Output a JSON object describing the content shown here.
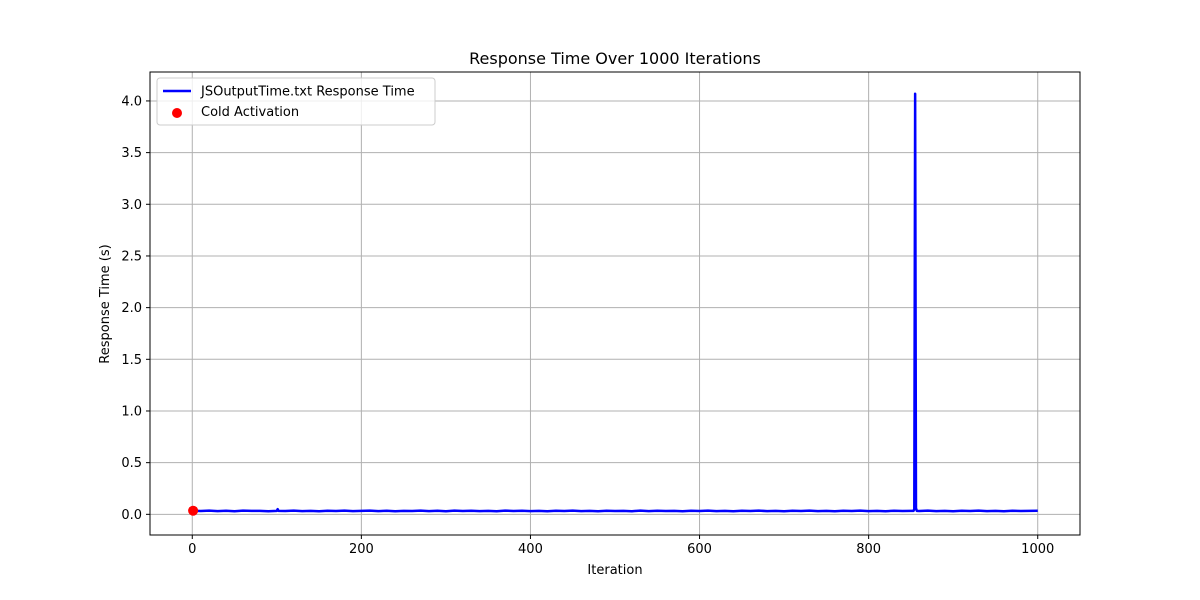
{
  "chart_data": {
    "type": "line",
    "title": "Response Time Over 1000 Iterations",
    "xlabel": "Iteration",
    "ylabel": "Response Time (s)",
    "xlim": [
      -50,
      1050
    ],
    "ylim": [
      -0.2,
      4.28
    ],
    "xticks": [
      0,
      200,
      400,
      600,
      800,
      1000
    ],
    "xtick_labels": [
      "0",
      "200",
      "400",
      "600",
      "800",
      "1000"
    ],
    "yticks": [
      0.0,
      0.5,
      1.0,
      1.5,
      2.0,
      2.5,
      3.0,
      3.5,
      4.0
    ],
    "ytick_labels": [
      "0.0",
      "0.5",
      "1.0",
      "1.5",
      "2.0",
      "2.5",
      "3.0",
      "3.5",
      "4.0"
    ],
    "grid": true,
    "legend_position": "top-left",
    "series": [
      {
        "name": "JSOutputTime.txt Response Time",
        "kind": "line",
        "color": "#0000ff",
        "x": [
          1,
          10,
          20,
          30,
          40,
          50,
          60,
          70,
          80,
          90,
          100,
          101,
          102,
          110,
          120,
          130,
          140,
          150,
          160,
          170,
          180,
          190,
          200,
          210,
          220,
          230,
          240,
          250,
          260,
          270,
          280,
          290,
          300,
          310,
          320,
          330,
          340,
          350,
          360,
          370,
          380,
          390,
          400,
          410,
          420,
          430,
          440,
          450,
          460,
          470,
          480,
          490,
          500,
          510,
          520,
          530,
          540,
          550,
          560,
          570,
          580,
          590,
          600,
          610,
          620,
          630,
          640,
          650,
          660,
          670,
          680,
          690,
          700,
          710,
          720,
          730,
          740,
          750,
          760,
          770,
          780,
          790,
          800,
          810,
          820,
          830,
          840,
          850,
          853,
          854,
          855,
          856,
          857,
          860,
          870,
          880,
          890,
          900,
          910,
          920,
          930,
          940,
          950,
          960,
          970,
          980,
          990,
          1000
        ],
        "y": [
          0.035,
          0.032,
          0.036,
          0.031,
          0.035,
          0.03,
          0.036,
          0.033,
          0.034,
          0.03,
          0.034,
          0.05,
          0.034,
          0.032,
          0.036,
          0.031,
          0.034,
          0.03,
          0.035,
          0.032,
          0.036,
          0.031,
          0.034,
          0.036,
          0.031,
          0.035,
          0.03,
          0.034,
          0.032,
          0.036,
          0.031,
          0.035,
          0.03,
          0.036,
          0.032,
          0.035,
          0.031,
          0.034,
          0.03,
          0.036,
          0.032,
          0.035,
          0.031,
          0.034,
          0.03,
          0.035,
          0.032,
          0.036,
          0.031,
          0.034,
          0.03,
          0.035,
          0.032,
          0.034,
          0.03,
          0.036,
          0.031,
          0.035,
          0.032,
          0.034,
          0.03,
          0.035,
          0.032,
          0.036,
          0.031,
          0.034,
          0.03,
          0.035,
          0.032,
          0.036,
          0.031,
          0.034,
          0.03,
          0.035,
          0.032,
          0.036,
          0.031,
          0.034,
          0.03,
          0.035,
          0.032,
          0.036,
          0.031,
          0.034,
          0.03,
          0.035,
          0.032,
          0.034,
          0.033,
          0.05,
          4.07,
          0.06,
          0.034,
          0.032,
          0.036,
          0.031,
          0.034,
          0.03,
          0.035,
          0.032,
          0.036,
          0.031,
          0.034,
          0.03,
          0.035,
          0.032,
          0.034,
          0.035
        ]
      },
      {
        "name": "Cold Activation",
        "kind": "scatter",
        "color": "#ff0000",
        "x": [
          1
        ],
        "y": [
          0.035
        ]
      }
    ]
  }
}
